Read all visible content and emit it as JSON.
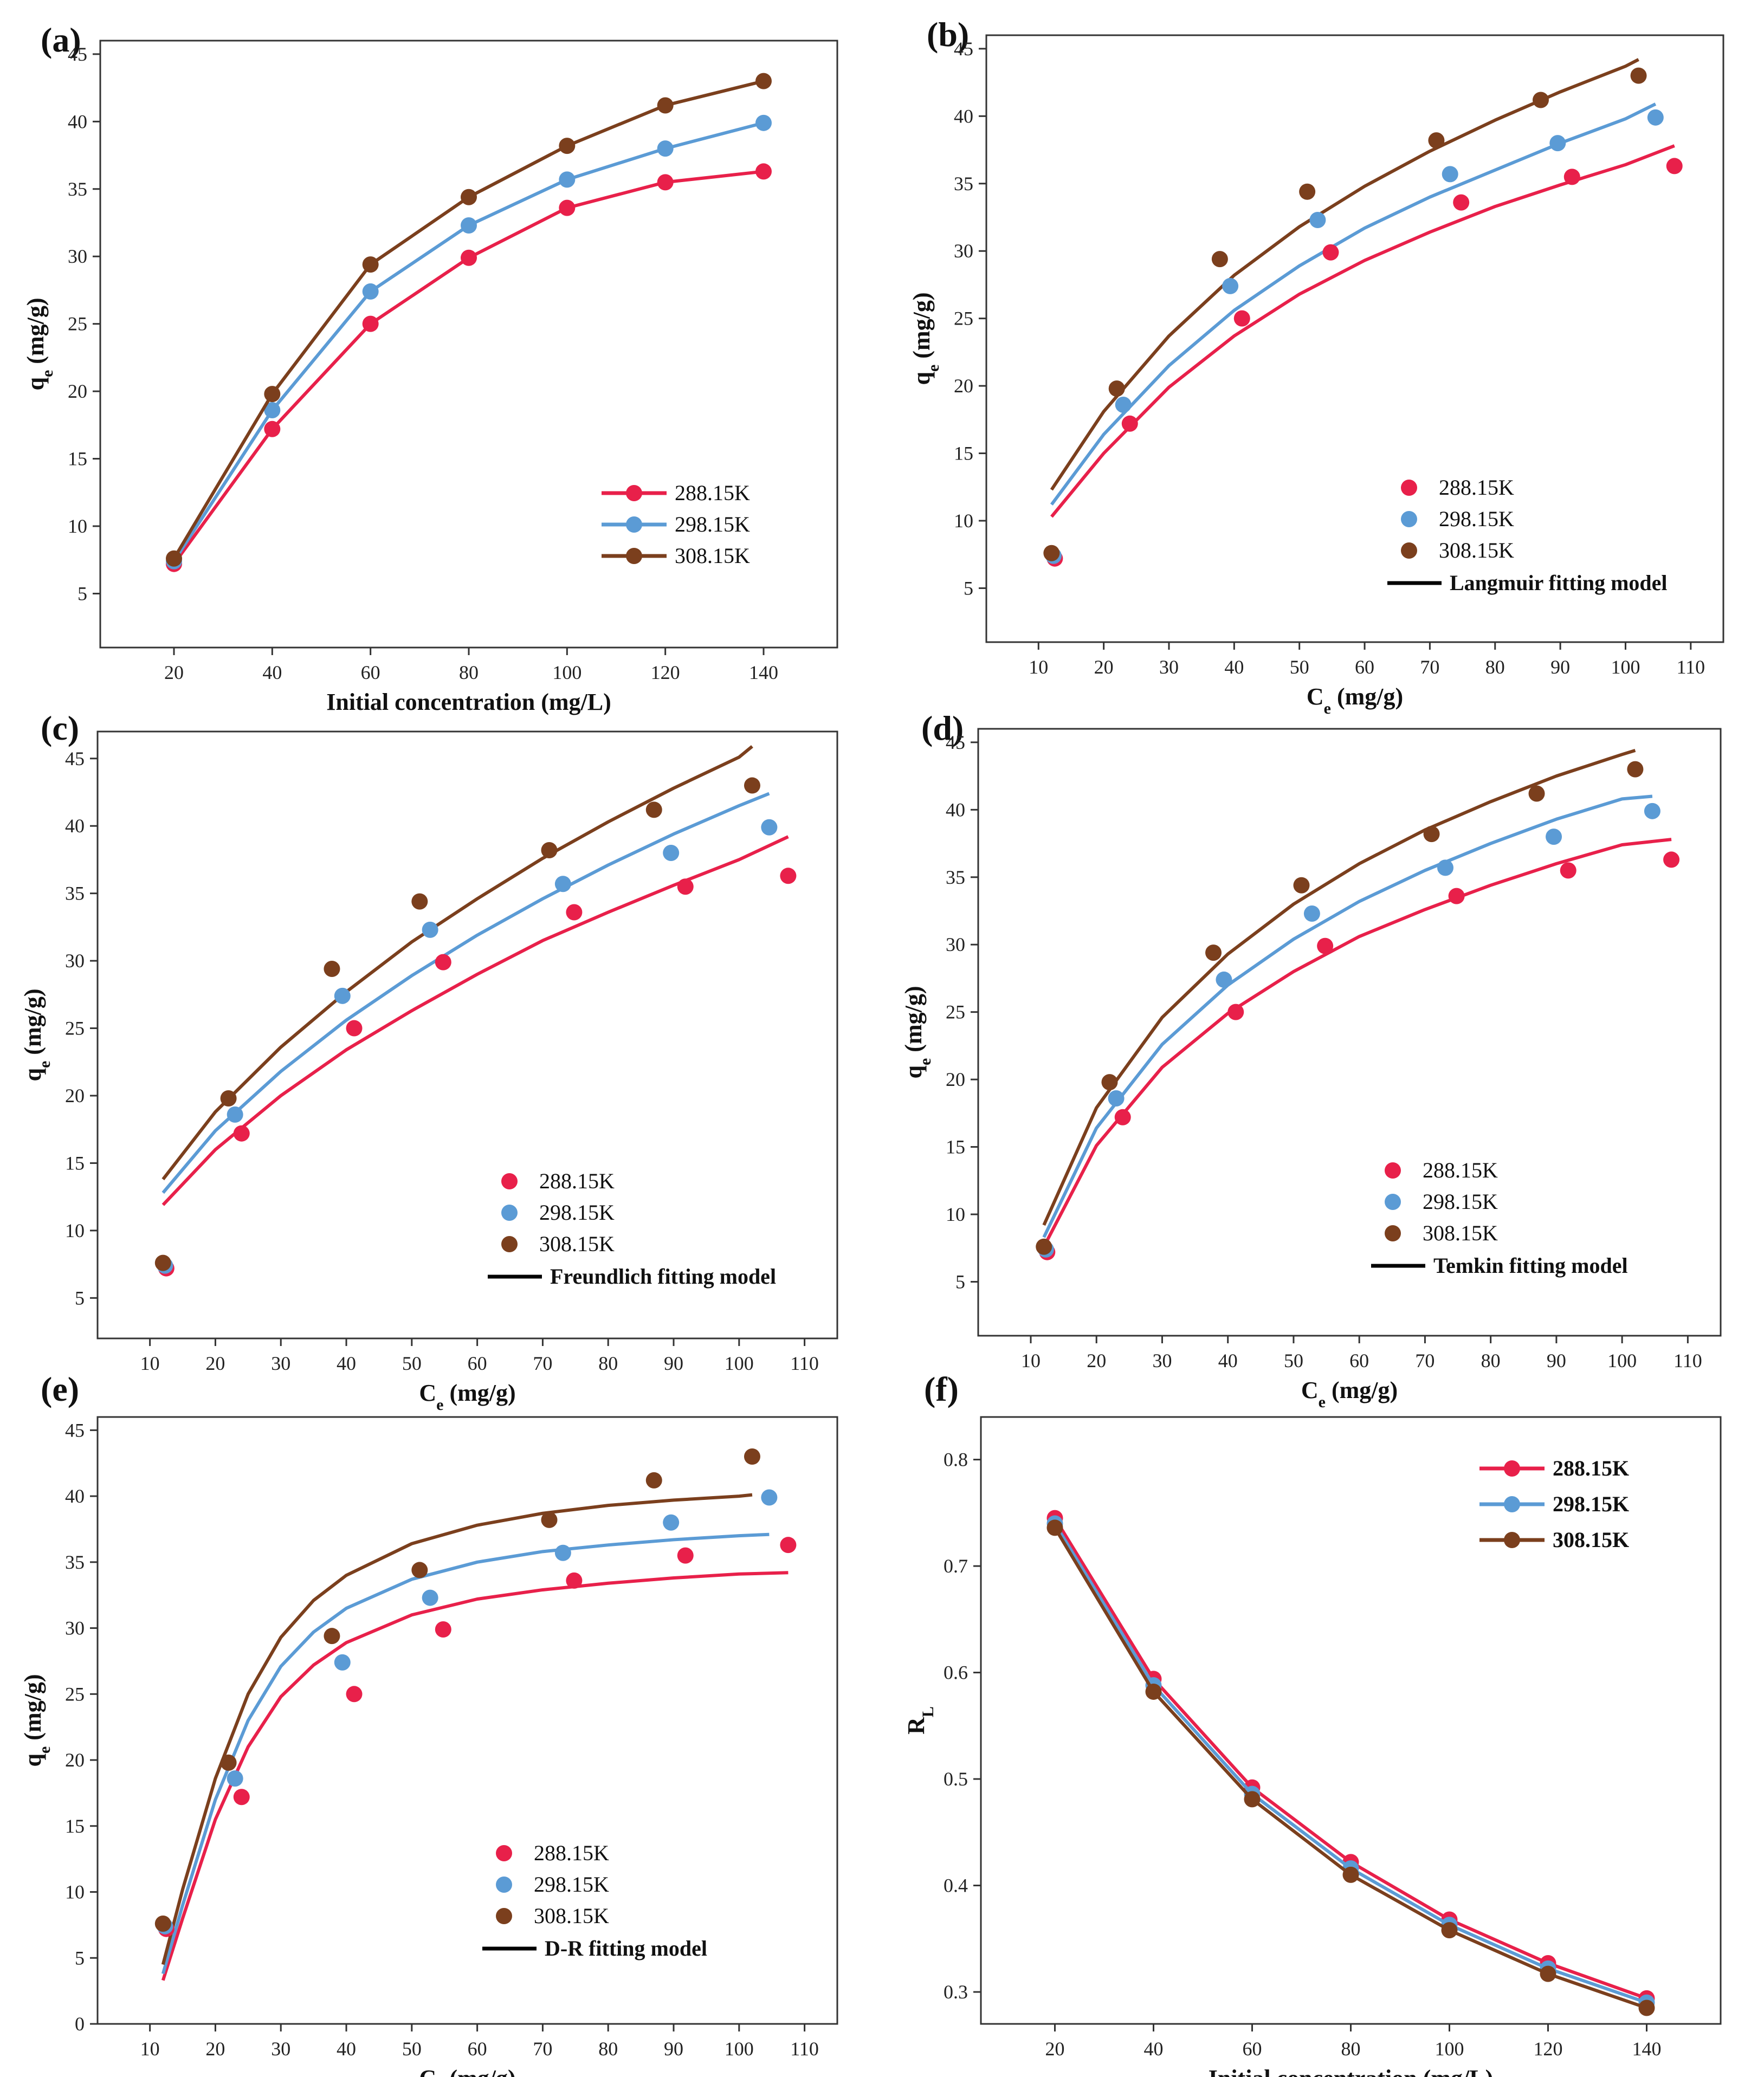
{
  "colors": {
    "288.15K": "#e8204a",
    "298.15K": "#5b9bd5",
    "308.15K": "#7b3f1d",
    "model": "#000000"
  },
  "chart_data": [
    {
      "panel": "(a)",
      "type": "line",
      "xlabel": "Initial concentration (mg/L)",
      "ylabel": "q_e (mg/g)",
      "xlim": [
        5,
        155
      ],
      "ylim": [
        1,
        46
      ],
      "xticks": [
        20,
        40,
        60,
        80,
        100,
        120,
        140
      ],
      "yticks": [
        5,
        10,
        15,
        20,
        25,
        30,
        35,
        40,
        45
      ],
      "x": [
        20,
        40,
        60,
        80,
        100,
        120,
        140
      ],
      "series": [
        {
          "name": "288.15K",
          "values": [
            7.2,
            17.2,
            25.0,
            29.9,
            33.6,
            35.5,
            36.3
          ]
        },
        {
          "name": "298.15K",
          "values": [
            7.4,
            18.6,
            27.4,
            32.3,
            35.7,
            38.0,
            39.9
          ]
        },
        {
          "name": "308.15K",
          "values": [
            7.6,
            19.8,
            29.4,
            34.4,
            38.2,
            41.2,
            43.0
          ]
        }
      ],
      "legend": {
        "position": "lower-right",
        "entries": [
          "288.15K",
          "298.15K",
          "308.15K"
        ]
      }
    },
    {
      "panel": "(b)",
      "type": "scatter",
      "xlabel": "C_e (mg/g)",
      "ylabel": "q_e (mg/g)",
      "xlim": [
        2,
        115
      ],
      "ylim": [
        1,
        46
      ],
      "xticks": [
        10,
        20,
        30,
        40,
        50,
        60,
        70,
        80,
        90,
        100,
        110
      ],
      "yticks": [
        5,
        10,
        15,
        20,
        25,
        30,
        35,
        40,
        45
      ],
      "series": [
        {
          "name": "288.15K",
          "x": [
            12.5,
            24.0,
            41.2,
            54.8,
            74.8,
            91.8,
            107.5
          ],
          "y": [
            7.2,
            17.2,
            25.0,
            29.9,
            33.6,
            35.5,
            36.3
          ]
        },
        {
          "name": "298.15K",
          "x": [
            12.3,
            23.0,
            39.4,
            52.8,
            73.1,
            89.6,
            104.6
          ],
          "y": [
            7.4,
            18.6,
            27.4,
            32.3,
            35.7,
            38.0,
            39.9
          ]
        },
        {
          "name": "308.15K",
          "x": [
            12.0,
            22.0,
            37.8,
            51.2,
            71.0,
            87.0,
            102.0
          ],
          "y": [
            7.6,
            19.8,
            29.4,
            34.4,
            38.2,
            41.2,
            43.0
          ]
        }
      ],
      "fits": [
        {
          "name": "288.15K",
          "x": [
            12,
            20,
            30,
            40,
            50,
            60,
            70,
            80,
            90,
            100,
            107.5
          ],
          "y": [
            10.3,
            15.0,
            19.9,
            23.7,
            26.8,
            29.3,
            31.4,
            33.3,
            34.9,
            36.4,
            37.8
          ]
        },
        {
          "name": "298.15K",
          "x": [
            12,
            20,
            30,
            40,
            50,
            60,
            70,
            80,
            90,
            100,
            104.6
          ],
          "y": [
            11.2,
            16.4,
            21.5,
            25.6,
            28.9,
            31.7,
            34.0,
            36.0,
            38.0,
            39.8,
            40.9
          ]
        },
        {
          "name": "308.15K",
          "x": [
            12,
            20,
            30,
            40,
            50,
            60,
            70,
            80,
            90,
            100,
            102
          ],
          "y": [
            12.3,
            18.1,
            23.7,
            28.2,
            31.8,
            34.8,
            37.4,
            39.7,
            41.8,
            43.7,
            44.2
          ]
        }
      ],
      "legend": {
        "position": "lower-right",
        "entries": [
          "288.15K",
          "298.15K",
          "308.15K"
        ],
        "model_label": "Langmuir fitting model"
      }
    },
    {
      "panel": "(c)",
      "type": "scatter",
      "xlabel": "C_e (mg/g)",
      "ylabel": "q_e (mg/g)",
      "xlim": [
        2,
        115
      ],
      "ylim": [
        2,
        47
      ],
      "xticks": [
        10,
        20,
        30,
        40,
        50,
        60,
        70,
        80,
        90,
        100,
        110
      ],
      "yticks": [
        5,
        10,
        15,
        20,
        25,
        30,
        35,
        40,
        45
      ],
      "series": [
        {
          "name": "288.15K",
          "x": [
            12.5,
            24.0,
            41.2,
            54.8,
            74.8,
            91.8,
            107.5
          ],
          "y": [
            7.2,
            17.2,
            25.0,
            29.9,
            33.6,
            35.5,
            36.3
          ]
        },
        {
          "name": "298.15K",
          "x": [
            12.3,
            23.0,
            39.4,
            52.8,
            73.1,
            89.6,
            104.6
          ],
          "y": [
            7.4,
            18.6,
            27.4,
            32.3,
            35.7,
            38.0,
            39.9
          ]
        },
        {
          "name": "308.15K",
          "x": [
            12.0,
            22.0,
            37.8,
            51.2,
            71.0,
            87.0,
            102.0
          ],
          "y": [
            7.6,
            19.8,
            29.4,
            34.4,
            38.2,
            41.2,
            43.0
          ]
        }
      ],
      "fits": [
        {
          "name": "288.15K",
          "x": [
            12,
            20,
            30,
            40,
            50,
            60,
            70,
            80,
            90,
            100,
            107.5
          ],
          "y": [
            11.9,
            16.0,
            20.0,
            23.4,
            26.3,
            29.0,
            31.5,
            33.6,
            35.6,
            37.5,
            39.2
          ]
        },
        {
          "name": "298.15K",
          "x": [
            12,
            20,
            30,
            40,
            50,
            60,
            70,
            80,
            90,
            100,
            104.6
          ],
          "y": [
            12.8,
            17.4,
            21.8,
            25.6,
            28.9,
            31.9,
            34.6,
            37.1,
            39.4,
            41.5,
            42.4
          ]
        },
        {
          "name": "308.15K",
          "x": [
            12,
            20,
            30,
            40,
            50,
            60,
            70,
            80,
            90,
            100,
            102
          ],
          "y": [
            13.8,
            18.8,
            23.6,
            27.7,
            31.4,
            34.6,
            37.6,
            40.3,
            42.8,
            45.1,
            45.9
          ]
        }
      ],
      "legend": {
        "position": "lower-right",
        "entries": [
          "288.15K",
          "298.15K",
          "308.15K"
        ],
        "model_label": "Freundlich fitting model"
      }
    },
    {
      "panel": "(d)",
      "type": "scatter",
      "xlabel": "C_e (mg/g)",
      "ylabel": "q_e (mg/g)",
      "xlim": [
        2,
        115
      ],
      "ylim": [
        1,
        46
      ],
      "xticks": [
        10,
        20,
        30,
        40,
        50,
        60,
        70,
        80,
        90,
        100,
        110
      ],
      "yticks": [
        5,
        10,
        15,
        20,
        25,
        30,
        35,
        40,
        45
      ],
      "series": [
        {
          "name": "288.15K",
          "x": [
            12.5,
            24.0,
            41.2,
            54.8,
            74.8,
            91.8,
            107.5
          ],
          "y": [
            7.2,
            17.2,
            25.0,
            29.9,
            33.6,
            35.5,
            36.3
          ]
        },
        {
          "name": "298.15K",
          "x": [
            12.3,
            23.0,
            39.4,
            52.8,
            73.1,
            89.6,
            104.6
          ],
          "y": [
            7.4,
            18.6,
            27.4,
            32.3,
            35.7,
            38.0,
            39.9
          ]
        },
        {
          "name": "308.15K",
          "x": [
            12.0,
            22.0,
            37.8,
            51.2,
            71.0,
            87.0,
            102.0
          ],
          "y": [
            7.6,
            19.8,
            29.4,
            34.4,
            38.2,
            41.2,
            43.0
          ]
        }
      ],
      "fits": [
        {
          "name": "288.15K",
          "x": [
            12,
            20,
            30,
            40,
            50,
            60,
            70,
            80,
            90,
            100,
            107.5
          ],
          "y": [
            7.6,
            15.1,
            20.9,
            24.9,
            28.0,
            30.6,
            32.6,
            34.4,
            36.0,
            37.4,
            37.8
          ]
        },
        {
          "name": "298.15K",
          "x": [
            12,
            20,
            30,
            40,
            50,
            60,
            70,
            80,
            90,
            100,
            104.6
          ],
          "y": [
            8.3,
            16.4,
            22.6,
            27.0,
            30.4,
            33.2,
            35.5,
            37.5,
            39.3,
            40.8,
            41.0
          ]
        },
        {
          "name": "308.15K",
          "x": [
            12,
            20,
            30,
            40,
            50,
            60,
            70,
            80,
            90,
            100,
            102
          ],
          "y": [
            9.2,
            17.9,
            24.6,
            29.3,
            33.0,
            36.0,
            38.5,
            40.6,
            42.5,
            44.1,
            44.4
          ]
        }
      ],
      "legend": {
        "position": "lower-right",
        "entries": [
          "288.15K",
          "298.15K",
          "308.15K"
        ],
        "model_label": "Temkin fitting model"
      }
    },
    {
      "panel": "(e)",
      "type": "scatter",
      "xlabel": "C_e (mg/g)",
      "ylabel": "q_e (mg/g)",
      "xlim": [
        2,
        115
      ],
      "ylim": [
        0,
        46
      ],
      "xticks": [
        10,
        20,
        30,
        40,
        50,
        60,
        70,
        80,
        90,
        100,
        110
      ],
      "yticks": [
        0,
        5,
        10,
        15,
        20,
        25,
        30,
        35,
        40,
        45
      ],
      "series": [
        {
          "name": "288.15K",
          "x": [
            12.5,
            24.0,
            41.2,
            54.8,
            74.8,
            91.8,
            107.5
          ],
          "y": [
            7.2,
            17.2,
            25.0,
            29.9,
            33.6,
            35.5,
            36.3
          ]
        },
        {
          "name": "298.15K",
          "x": [
            12.3,
            23.0,
            39.4,
            52.8,
            73.1,
            89.6,
            104.6
          ],
          "y": [
            7.4,
            18.6,
            27.4,
            32.3,
            35.7,
            38.0,
            39.9
          ]
        },
        {
          "name": "308.15K",
          "x": [
            12.0,
            22.0,
            37.8,
            51.2,
            71.0,
            87.0,
            102.0
          ],
          "y": [
            7.6,
            19.8,
            29.4,
            34.4,
            38.2,
            41.2,
            43.0
          ]
        }
      ],
      "fits": [
        {
          "name": "288.15K",
          "x": [
            12,
            15,
            20,
            25,
            30,
            35,
            40,
            50,
            60,
            70,
            80,
            90,
            100,
            107.5
          ],
          "y": [
            3.3,
            8.0,
            15.5,
            21.0,
            24.8,
            27.2,
            28.9,
            31.0,
            32.2,
            32.9,
            33.4,
            33.8,
            34.1,
            34.2
          ]
        },
        {
          "name": "298.15K",
          "x": [
            12,
            15,
            20,
            25,
            30,
            35,
            40,
            50,
            60,
            70,
            80,
            90,
            100,
            104.6
          ],
          "y": [
            3.8,
            9.0,
            17.0,
            23.0,
            27.1,
            29.7,
            31.5,
            33.7,
            35.0,
            35.8,
            36.3,
            36.7,
            37.0,
            37.1
          ]
        },
        {
          "name": "308.15K",
          "x": [
            12,
            15,
            20,
            25,
            30,
            35,
            40,
            50,
            60,
            70,
            80,
            90,
            100,
            102
          ],
          "y": [
            4.5,
            10.2,
            18.6,
            25.0,
            29.3,
            32.1,
            34.0,
            36.4,
            37.8,
            38.7,
            39.3,
            39.7,
            40.0,
            40.1
          ]
        }
      ],
      "legend": {
        "position": "lower-right",
        "entries": [
          "288.15K",
          "298.15K",
          "308.15K"
        ],
        "model_label": "D-R fitting model"
      }
    },
    {
      "panel": "(f)",
      "type": "line",
      "xlabel": "Initial concentration (mg/L)",
      "ylabel": "R_L",
      "xlim": [
        5,
        155
      ],
      "ylim": [
        0.27,
        0.84
      ],
      "xticks": [
        20,
        40,
        60,
        80,
        100,
        120,
        140
      ],
      "yticks": [
        0.3,
        0.4,
        0.5,
        0.6,
        0.7,
        0.8
      ],
      "x": [
        20,
        40,
        60,
        80,
        100,
        120,
        140
      ],
      "series": [
        {
          "name": "288.15K",
          "values": [
            0.745,
            0.594,
            0.492,
            0.422,
            0.368,
            0.327,
            0.294
          ]
        },
        {
          "name": "298.15K",
          "values": [
            0.74,
            0.588,
            0.486,
            0.416,
            0.363,
            0.322,
            0.29
          ]
        },
        {
          "name": "308.15K",
          "values": [
            0.736,
            0.582,
            0.481,
            0.41,
            0.358,
            0.317,
            0.285
          ]
        }
      ],
      "legend": {
        "position": "upper-right",
        "entries": [
          "288.15K",
          "298.15K",
          "308.15K"
        ]
      }
    }
  ]
}
